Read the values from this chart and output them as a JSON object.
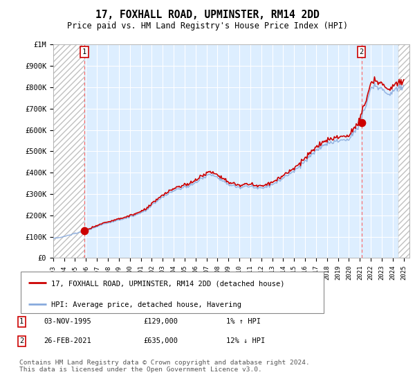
{
  "title": "17, FOXHALL ROAD, UPMINSTER, RM14 2DD",
  "subtitle": "Price paid vs. HM Land Registry's House Price Index (HPI)",
  "ylim": [
    0,
    1000000
  ],
  "yticks": [
    0,
    100000,
    200000,
    300000,
    400000,
    500000,
    600000,
    700000,
    800000,
    900000,
    1000000
  ],
  "ytick_labels": [
    "£0",
    "£100K",
    "£200K",
    "£300K",
    "£400K",
    "£500K",
    "£600K",
    "£700K",
    "£800K",
    "£900K",
    "£1M"
  ],
  "xlim_start": 1993.0,
  "xlim_end": 2025.5,
  "xtick_years": [
    1993,
    1994,
    1995,
    1996,
    1997,
    1998,
    1999,
    2000,
    2001,
    2002,
    2003,
    2004,
    2005,
    2006,
    2007,
    2008,
    2009,
    2010,
    2011,
    2012,
    2013,
    2014,
    2015,
    2016,
    2017,
    2018,
    2019,
    2020,
    2021,
    2022,
    2023,
    2024,
    2025
  ],
  "point1_x": 1995.84,
  "point1_y": 129000,
  "point2_x": 2021.15,
  "point2_y": 635000,
  "hatch_left_end": 1995.84,
  "hatch_right_start": 2024.5,
  "legend_line1": "17, FOXHALL ROAD, UPMINSTER, RM14 2DD (detached house)",
  "legend_line2": "HPI: Average price, detached house, Havering",
  "footnote": "Contains HM Land Registry data © Crown copyright and database right 2024.\nThis data is licensed under the Open Government Licence v3.0.",
  "red_color": "#cc0000",
  "blue_color": "#88aadd",
  "background_plot": "#ddeeff",
  "background_fig": "#ffffff",
  "dashed_red_color": "#ff6666"
}
